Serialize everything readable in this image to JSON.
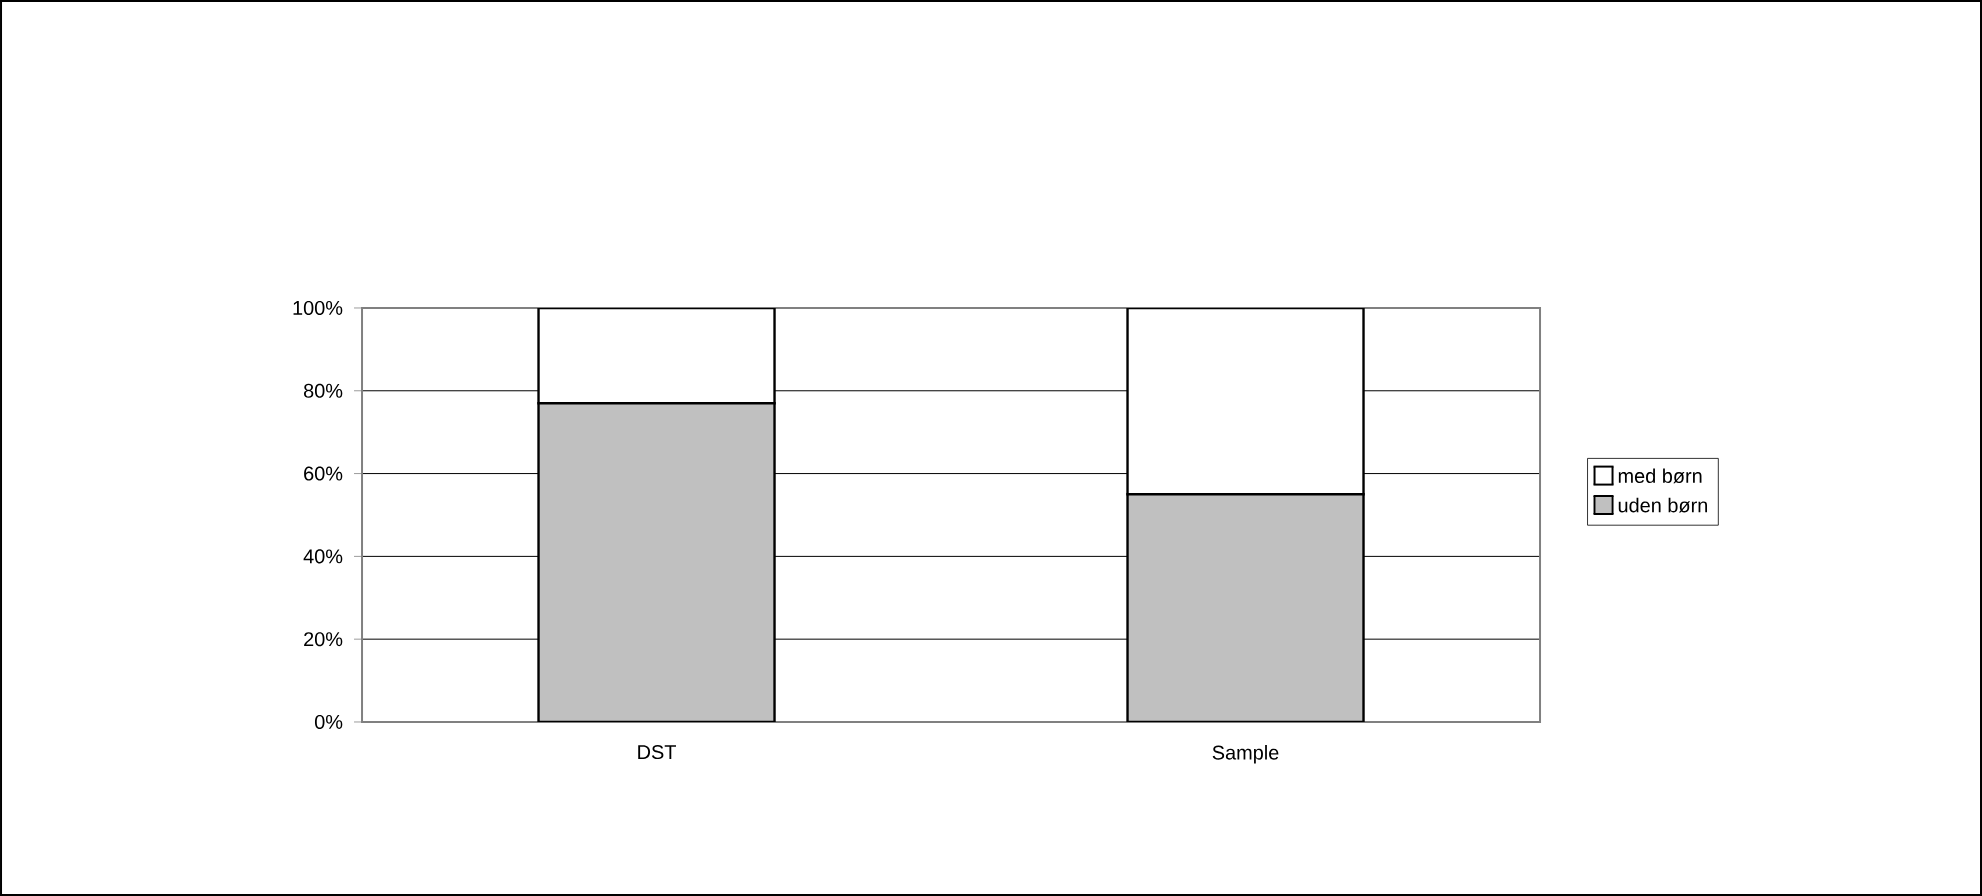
{
  "chart_data": {
    "type": "bar",
    "stacked": true,
    "categories": [
      "DST",
      "Sample"
    ],
    "series": [
      {
        "name": "uden børn",
        "color": "#c0c0c0",
        "values": [
          77,
          55
        ]
      },
      {
        "name": "med børn",
        "color": "#ffffff",
        "values": [
          23,
          45
        ]
      }
    ],
    "ylim": [
      0,
      100
    ],
    "yticks": [
      {
        "value": 0,
        "label": "0%"
      },
      {
        "value": 20,
        "label": "20%"
      },
      {
        "value": 40,
        "label": "40%"
      },
      {
        "value": 60,
        "label": "60%"
      },
      {
        "value": 80,
        "label": "80%"
      },
      {
        "value": 100,
        "label": "100%"
      }
    ],
    "grid": "y",
    "legend": "right"
  }
}
